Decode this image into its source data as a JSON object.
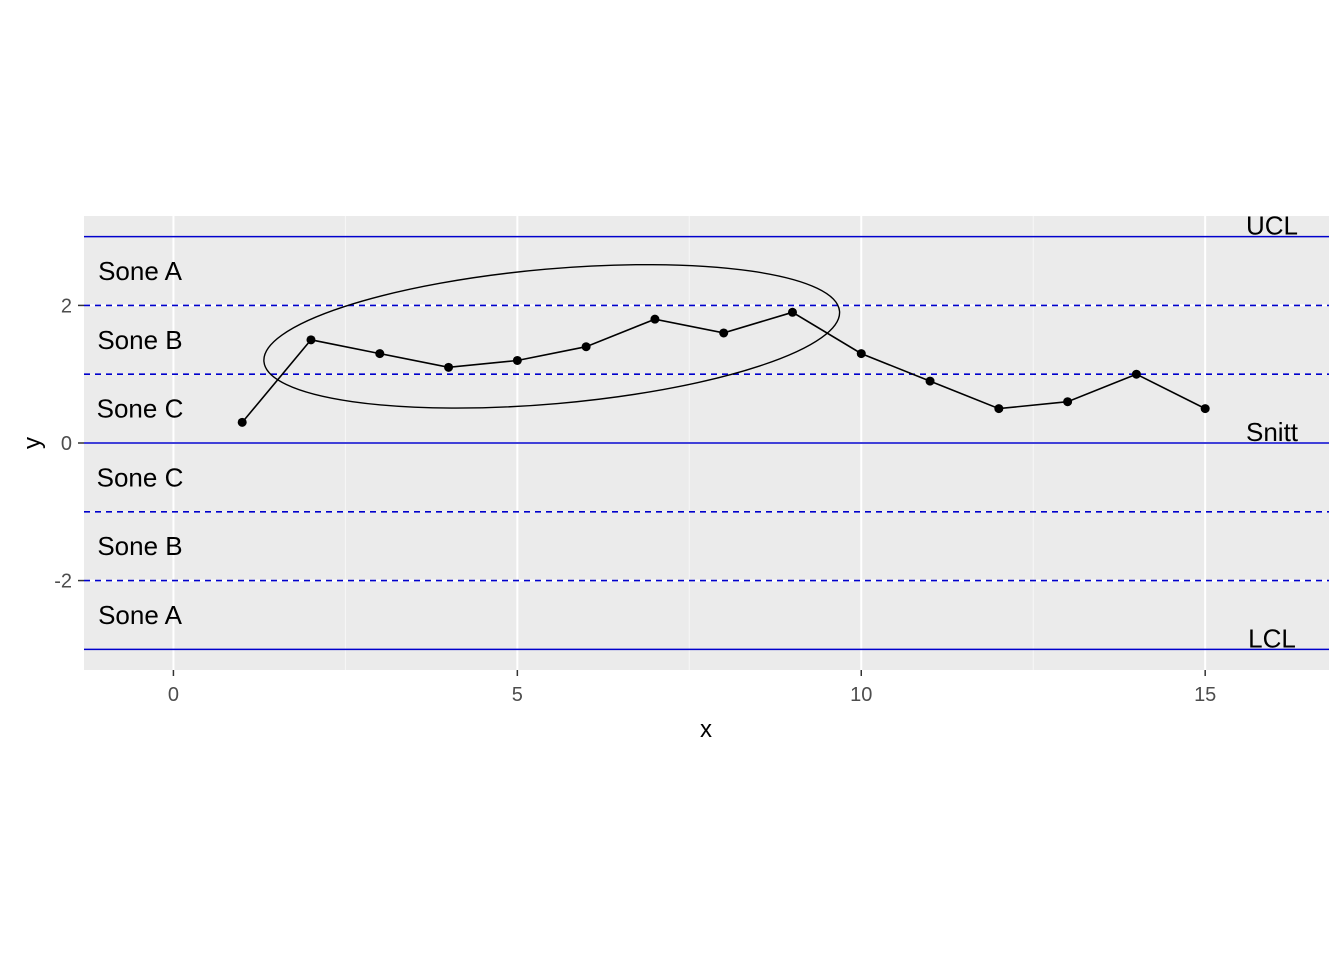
{
  "chart_data": {
    "type": "line",
    "title": "",
    "xlabel": "x",
    "ylabel": "y",
    "xlim": [
      -1.3,
      16.8
    ],
    "ylim": [
      -3.3,
      3.3
    ],
    "x_ticks": [
      0,
      5,
      10,
      15
    ],
    "x_tick_labels": [
      "0",
      "5",
      "10",
      "15"
    ],
    "y_ticks": [
      -2,
      0,
      2
    ],
    "y_tick_labels": [
      "-2",
      "0",
      "2"
    ],
    "grid": true,
    "background": "#ebebeb",
    "series": [
      {
        "x": [
          1,
          2,
          3,
          4,
          5,
          6,
          7,
          8,
          9,
          10,
          11,
          12,
          13,
          14,
          15
        ],
        "y": [
          0.3,
          1.5,
          1.3,
          1.1,
          1.2,
          1.4,
          1.8,
          1.6,
          1.9,
          1.3,
          0.9,
          0.5,
          0.6,
          1.0,
          0.5
        ],
        "color": "#000000"
      }
    ],
    "reference_lines": [
      {
        "y": 3,
        "style": "solid",
        "color": "#0000cc",
        "label": "UCL"
      },
      {
        "y": 2,
        "style": "dashed",
        "color": "#0000cc"
      },
      {
        "y": 1,
        "style": "dashed",
        "color": "#0000cc"
      },
      {
        "y": 0,
        "style": "solid",
        "color": "#0000cc",
        "label": "Snitt"
      },
      {
        "y": -1,
        "style": "dashed",
        "color": "#0000cc"
      },
      {
        "y": -2,
        "style": "dashed",
        "color": "#0000cc"
      },
      {
        "y": -3,
        "style": "solid",
        "color": "#0000cc",
        "label": "LCL"
      }
    ],
    "zone_labels": [
      {
        "text": "Sone A",
        "y": 2.5
      },
      {
        "text": "Sone B",
        "y": 1.5
      },
      {
        "text": "Sone C",
        "y": 0.5
      },
      {
        "text": "Sone C",
        "y": -0.5
      },
      {
        "text": "Sone B",
        "y": -1.5
      },
      {
        "text": "Sone A",
        "y": -2.5
      }
    ],
    "annotation_ellipse": {
      "center_x": 5.5,
      "center_y": 1.55,
      "semi_x": 4.2,
      "semi_y": 0.98,
      "rotation_deg": 5
    }
  }
}
